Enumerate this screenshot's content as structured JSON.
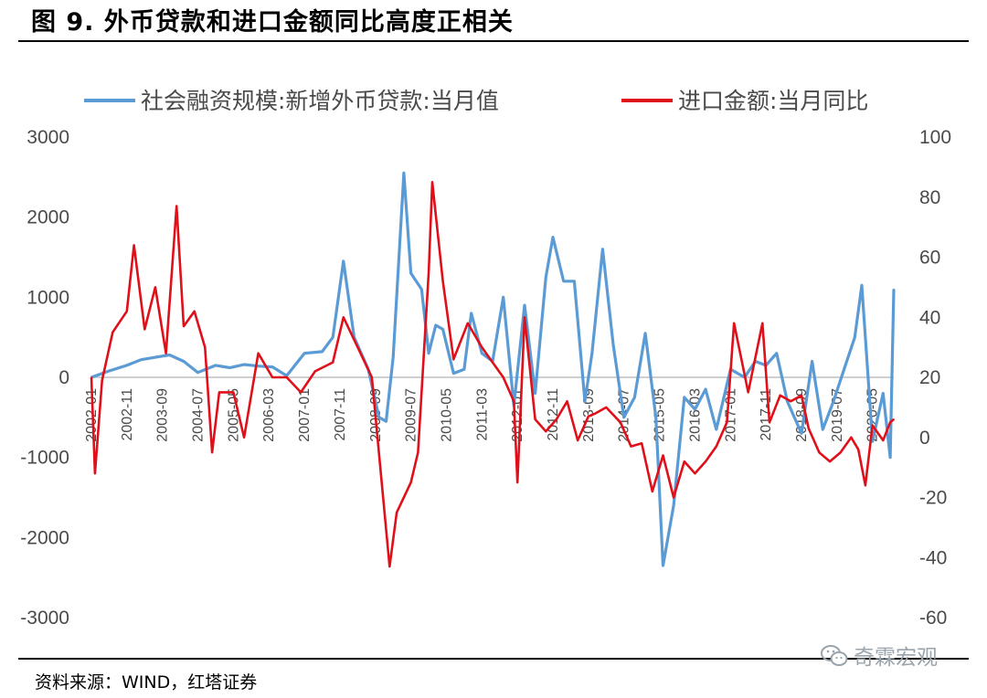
{
  "figure": {
    "title": "图 9. 外币贷款和进口金额同比高度正相关",
    "source": "资料来源：WIND，红塔证券",
    "watermark": "奇霖宏观",
    "watermark_icon": "wechat-icon"
  },
  "chart_data": {
    "type": "line",
    "title": "",
    "xlabel": "",
    "ylabel": "",
    "y_left_lim": [
      -3000,
      3000
    ],
    "y_left_ticks": [
      "3000",
      "2000",
      "1000",
      "0",
      "-1000",
      "-2000",
      "-3000"
    ],
    "y_right_lim": [
      -60,
      100
    ],
    "y_right_ticks": [
      "100",
      "80",
      "60",
      "40",
      "20",
      "0",
      "-20",
      "-40",
      "-60"
    ],
    "x_start": "2002-01",
    "x_end": "2020-11",
    "x_tick_labels": [
      "2002-01",
      "2002-11",
      "2003-09",
      "2004-07",
      "2005-05",
      "2006-03",
      "2007-01",
      "2007-11",
      "2008-09",
      "2009-07",
      "2010-05",
      "2011-03",
      "2012-01",
      "2012-11",
      "2013-09",
      "2014-07",
      "2015-05",
      "2016-03",
      "2017-01",
      "2017-11",
      "2018-09",
      "2019-07",
      "2020-05"
    ],
    "legend_position": "top",
    "grid": false,
    "colors": {
      "left_series": "#5b9bd5",
      "right_series": "#e0101a"
    },
    "series": [
      {
        "name": "社会融资规模:新增外币贷款:当月值",
        "axis": "left",
        "anchors": [
          [
            "2002-01",
            0
          ],
          [
            "2002-06",
            80
          ],
          [
            "2002-11",
            150
          ],
          [
            "2003-03",
            220
          ],
          [
            "2003-07",
            250
          ],
          [
            "2003-11",
            280
          ],
          [
            "2004-03",
            200
          ],
          [
            "2004-07",
            60
          ],
          [
            "2004-12",
            150
          ],
          [
            "2005-04",
            120
          ],
          [
            "2005-08",
            160
          ],
          [
            "2005-12",
            140
          ],
          [
            "2006-04",
            130
          ],
          [
            "2006-08",
            20
          ],
          [
            "2007-01",
            300
          ],
          [
            "2007-06",
            320
          ],
          [
            "2007-09",
            500
          ],
          [
            "2007-12",
            1450
          ],
          [
            "2008-03",
            500
          ],
          [
            "2008-07",
            100
          ],
          [
            "2008-10",
            -500
          ],
          [
            "2008-12",
            -550
          ],
          [
            "2009-02",
            250
          ],
          [
            "2009-05",
            2550
          ],
          [
            "2009-07",
            1300
          ],
          [
            "2009-10",
            1100
          ],
          [
            "2009-12",
            300
          ],
          [
            "2010-02",
            650
          ],
          [
            "2010-04",
            600
          ],
          [
            "2010-07",
            50
          ],
          [
            "2010-10",
            100
          ],
          [
            "2010-12",
            800
          ],
          [
            "2011-03",
            300
          ],
          [
            "2011-06",
            200
          ],
          [
            "2011-09",
            1000
          ],
          [
            "2011-12",
            -350
          ],
          [
            "2012-03",
            900
          ],
          [
            "2012-06",
            -200
          ],
          [
            "2012-09",
            1250
          ],
          [
            "2012-11",
            1750
          ],
          [
            "2013-02",
            1200
          ],
          [
            "2013-05",
            1200
          ],
          [
            "2013-08",
            -300
          ],
          [
            "2013-10",
            300
          ],
          [
            "2014-01",
            1600
          ],
          [
            "2014-04",
            400
          ],
          [
            "2014-07",
            -500
          ],
          [
            "2014-10",
            -250
          ],
          [
            "2015-01",
            550
          ],
          [
            "2015-04",
            -500
          ],
          [
            "2015-06",
            -2350
          ],
          [
            "2015-09",
            -1600
          ],
          [
            "2015-12",
            -250
          ],
          [
            "2016-03",
            -400
          ],
          [
            "2016-06",
            -150
          ],
          [
            "2016-09",
            -650
          ],
          [
            "2017-01",
            100
          ],
          [
            "2017-05",
            0
          ],
          [
            "2017-08",
            200
          ],
          [
            "2017-11",
            150
          ],
          [
            "2018-02",
            300
          ],
          [
            "2018-05",
            -300
          ],
          [
            "2018-09",
            -700
          ],
          [
            "2018-12",
            200
          ],
          [
            "2019-03",
            -650
          ],
          [
            "2019-06",
            -300
          ],
          [
            "2019-09",
            100
          ],
          [
            "2019-12",
            500
          ],
          [
            "2020-02",
            1150
          ],
          [
            "2020-05",
            -800
          ],
          [
            "2020-08",
            -200
          ],
          [
            "2020-10",
            -1000
          ],
          [
            "2020-11",
            1100
          ]
        ]
      },
      {
        "name": "进口金额:当月同比",
        "axis": "right",
        "anchors": [
          [
            "2002-01",
            20
          ],
          [
            "2002-02",
            -12
          ],
          [
            "2002-04",
            19
          ],
          [
            "2002-07",
            35
          ],
          [
            "2002-11",
            42
          ],
          [
            "2003-01",
            64
          ],
          [
            "2003-04",
            36
          ],
          [
            "2003-07",
            50
          ],
          [
            "2003-10",
            28
          ],
          [
            "2004-01",
            77
          ],
          [
            "2004-03",
            37
          ],
          [
            "2004-06",
            42
          ],
          [
            "2004-09",
            30
          ],
          [
            "2004-11",
            -5
          ],
          [
            "2005-01",
            15
          ],
          [
            "2005-05",
            15
          ],
          [
            "2005-08",
            0
          ],
          [
            "2005-12",
            28
          ],
          [
            "2006-04",
            20
          ],
          [
            "2006-08",
            20
          ],
          [
            "2006-12",
            15
          ],
          [
            "2007-04",
            22
          ],
          [
            "2007-09",
            25
          ],
          [
            "2007-12",
            40
          ],
          [
            "2008-04",
            30
          ],
          [
            "2008-08",
            20
          ],
          [
            "2008-11",
            -18
          ],
          [
            "2009-01",
            -43
          ],
          [
            "2009-03",
            -25
          ],
          [
            "2009-07",
            -15
          ],
          [
            "2009-09",
            -5
          ],
          [
            "2009-12",
            55
          ],
          [
            "2010-01",
            85
          ],
          [
            "2010-04",
            52
          ],
          [
            "2010-07",
            26
          ],
          [
            "2010-11",
            38
          ],
          [
            "2011-03",
            30
          ],
          [
            "2011-06",
            25
          ],
          [
            "2011-09",
            20
          ],
          [
            "2011-12",
            12
          ],
          [
            "2012-01",
            -15
          ],
          [
            "2012-03",
            40
          ],
          [
            "2012-06",
            6
          ],
          [
            "2012-09",
            2
          ],
          [
            "2012-12",
            6
          ],
          [
            "2013-03",
            12
          ],
          [
            "2013-06",
            -1
          ],
          [
            "2013-09",
            7
          ],
          [
            "2013-11",
            8
          ],
          [
            "2014-02",
            10
          ],
          [
            "2014-06",
            5
          ],
          [
            "2014-09",
            -3
          ],
          [
            "2014-12",
            -2
          ],
          [
            "2015-03",
            -18
          ],
          [
            "2015-06",
            -6
          ],
          [
            "2015-09",
            -20
          ],
          [
            "2015-12",
            -8
          ],
          [
            "2016-03",
            -12
          ],
          [
            "2016-06",
            -8
          ],
          [
            "2016-09",
            -3
          ],
          [
            "2016-12",
            5
          ],
          [
            "2017-02",
            38
          ],
          [
            "2017-06",
            15
          ],
          [
            "2017-10",
            38
          ],
          [
            "2017-12",
            5
          ],
          [
            "2018-03",
            14
          ],
          [
            "2018-06",
            12
          ],
          [
            "2018-09",
            14
          ],
          [
            "2018-11",
            3
          ],
          [
            "2019-02",
            -5
          ],
          [
            "2019-05",
            -8
          ],
          [
            "2019-08",
            -5
          ],
          [
            "2019-11",
            0
          ],
          [
            "2020-01",
            -4
          ],
          [
            "2020-03",
            -16
          ],
          [
            "2020-05",
            4
          ],
          [
            "2020-08",
            -1
          ],
          [
            "2020-10",
            5
          ],
          [
            "2020-11",
            6
          ]
        ]
      }
    ]
  }
}
